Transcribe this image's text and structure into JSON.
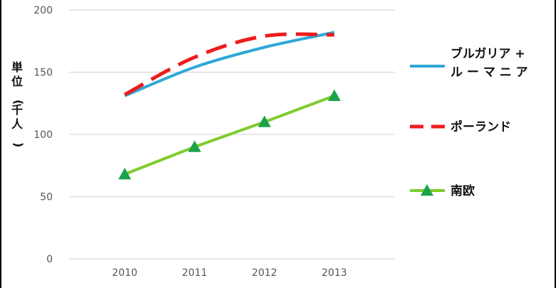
{
  "chart_data": {
    "type": "line",
    "title": "",
    "xlabel": "",
    "ylabel": "単位(千人)",
    "x": [
      "2010",
      "2011",
      "2012",
      "2013"
    ],
    "ylim": [
      0,
      200
    ],
    "yticks": [
      0,
      50,
      100,
      150,
      200
    ],
    "grid": true,
    "legend_position": "right",
    "series": [
      {
        "name": "ブルガリア＋ルーマニア",
        "legend_lines": [
          "ブルガリア +",
          "ル ー マ ニ ア"
        ],
        "values": [
          131,
          154,
          170,
          182
        ],
        "color": "#2ea8d6",
        "style": "solid",
        "marker": "none"
      },
      {
        "name": "ポーランド",
        "legend_lines": [
          "ポーランド"
        ],
        "values": [
          132,
          162,
          179,
          180
        ],
        "color": "#ee1c1c",
        "style": "dashed",
        "marker": "none"
      },
      {
        "name": "南欧",
        "legend_lines": [
          "南欧"
        ],
        "values": [
          68,
          90,
          110,
          131
        ],
        "color": "#7fcc2c",
        "style": "solid",
        "marker": "triangle",
        "marker_color": "#1aa34a"
      }
    ]
  }
}
